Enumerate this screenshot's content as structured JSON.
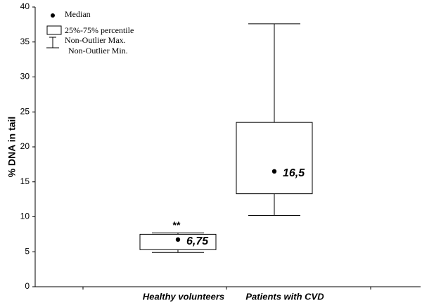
{
  "chart_data": {
    "type": "box",
    "y_label": "% DNA in tail",
    "categories": [
      "Healthy volunteers",
      "Patients with CVD"
    ],
    "min": [
      4.9,
      10.2
    ],
    "q1": [
      5.3,
      13.3
    ],
    "median": {
      "values": [
        6.75,
        16.5
      ],
      "value_labels": [
        "6,75",
        "16,5"
      ]
    },
    "q3": [
      7.5,
      23.5
    ],
    "max": [
      7.7,
      37.6
    ],
    "annotation": "**",
    "legend": [
      "Median",
      "25%-75% percentile",
      "Non-Outlier Max.",
      "Non-Outlier Min."
    ],
    "ylim": [
      0,
      40
    ],
    "yticks": [
      0,
      5,
      10,
      15,
      20,
      25,
      30,
      35,
      40
    ]
  }
}
